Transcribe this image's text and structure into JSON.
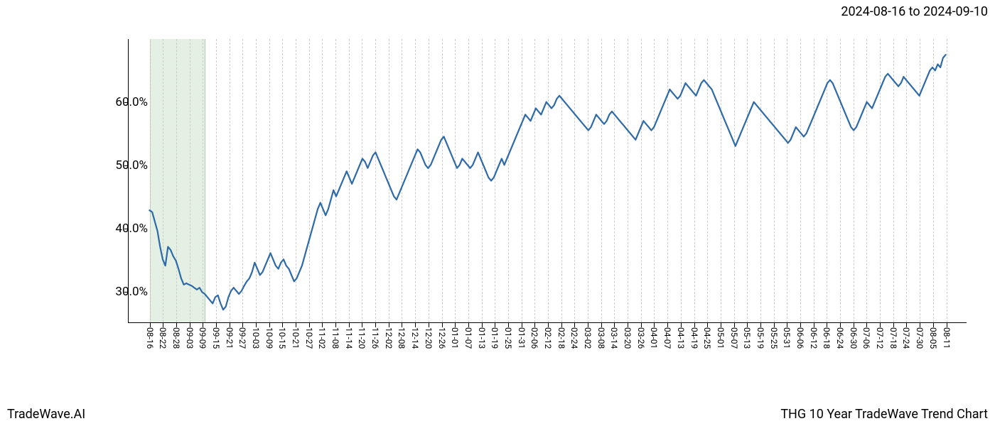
{
  "header": {
    "date_range": "2024-08-16 to 2024-09-10"
  },
  "footer": {
    "brand": "TradeWave.AI",
    "title": "THG 10 Year TradeWave Trend Chart"
  },
  "chart": {
    "type": "line",
    "background_color": "#ffffff",
    "grid_color": "#cccccc",
    "axis_color": "#000000",
    "line_color": "#2f6aa8",
    "line_width": 2.2,
    "highlight_band_color": "rgba(144,195,144,0.25)",
    "title_fontsize": 18,
    "label_fontsize": 12,
    "ytick_fontsize": 17,
    "ylim": [
      25,
      70
    ],
    "ytick_values": [
      30.0,
      40.0,
      50.0,
      60.0
    ],
    "ytick_labels": [
      "30.0%",
      "40.0%",
      "50.0%",
      "60.0%"
    ],
    "x_labels": [
      "08-16",
      "08-22",
      "08-28",
      "09-03",
      "09-09",
      "09-15",
      "09-21",
      "09-27",
      "10-03",
      "10-09",
      "10-15",
      "10-21",
      "10-27",
      "11-02",
      "11-08",
      "11-14",
      "11-20",
      "11-26",
      "12-02",
      "12-08",
      "12-14",
      "12-20",
      "12-26",
      "01-01",
      "01-07",
      "01-13",
      "01-19",
      "01-25",
      "01-31",
      "02-06",
      "02-12",
      "02-18",
      "02-24",
      "03-02",
      "03-08",
      "03-14",
      "03-20",
      "03-26",
      "04-01",
      "04-07",
      "04-13",
      "04-19",
      "04-25",
      "05-01",
      "05-07",
      "05-13",
      "05-19",
      "05-25",
      "05-31",
      "06-06",
      "06-12",
      "06-18",
      "06-24",
      "06-30",
      "07-06",
      "07-12",
      "07-18",
      "07-24",
      "07-30",
      "08-05",
      "08-11"
    ],
    "highlight": {
      "start_idx": 0,
      "end_idx": 4.2
    },
    "series": [
      42.8,
      42.5,
      41.0,
      39.5,
      37.0,
      35.0,
      34.0,
      37.0,
      36.5,
      35.5,
      34.8,
      33.5,
      32.0,
      31.0,
      31.2,
      31.0,
      30.8,
      30.5,
      30.2,
      30.5,
      29.8,
      29.5,
      29.0,
      28.5,
      28.0,
      29.0,
      29.3,
      28.0,
      27.0,
      27.5,
      29.0,
      30.0,
      30.5,
      30.0,
      29.5,
      30.0,
      30.8,
      31.5,
      32.0,
      33.0,
      34.5,
      33.5,
      32.5,
      33.0,
      34.0,
      35.0,
      36.0,
      35.0,
      34.0,
      33.5,
      34.5,
      35.0,
      34.0,
      33.5,
      32.5,
      31.5,
      32.0,
      33.0,
      34.0,
      35.5,
      37.0,
      38.5,
      40.0,
      41.5,
      43.0,
      44.0,
      43.0,
      42.0,
      43.0,
      44.5,
      46.0,
      45.0,
      46.0,
      47.0,
      48.0,
      49.0,
      48.0,
      47.0,
      48.0,
      49.0,
      50.0,
      51.0,
      50.5,
      49.5,
      50.5,
      51.5,
      52.0,
      51.0,
      50.0,
      49.0,
      48.0,
      47.0,
      46.0,
      45.0,
      44.5,
      45.5,
      46.5,
      47.5,
      48.5,
      49.5,
      50.5,
      51.5,
      52.5,
      52.0,
      51.0,
      50.0,
      49.5,
      50.0,
      51.0,
      52.0,
      53.0,
      54.0,
      54.5,
      53.5,
      52.5,
      51.5,
      50.5,
      49.5,
      50.0,
      51.0,
      50.5,
      50.0,
      49.5,
      50.0,
      51.0,
      52.0,
      51.0,
      50.0,
      49.0,
      48.0,
      47.5,
      48.0,
      49.0,
      50.0,
      51.0,
      50.0,
      51.0,
      52.0,
      53.0,
      54.0,
      55.0,
      56.0,
      57.0,
      58.0,
      57.5,
      57.0,
      58.0,
      59.0,
      58.5,
      58.0,
      59.0,
      60.0,
      59.5,
      59.0,
      59.5,
      60.5,
      61.0,
      60.5,
      60.0,
      59.5,
      59.0,
      58.5,
      58.0,
      57.5,
      57.0,
      56.5,
      56.0,
      55.5,
      56.0,
      57.0,
      58.0,
      57.5,
      57.0,
      56.5,
      57.0,
      58.0,
      58.5,
      58.0,
      57.5,
      57.0,
      56.5,
      56.0,
      55.5,
      55.0,
      54.5,
      54.0,
      55.0,
      56.0,
      57.0,
      56.5,
      56.0,
      55.5,
      56.0,
      57.0,
      58.0,
      59.0,
      60.0,
      61.0,
      62.0,
      61.5,
      61.0,
      60.5,
      61.0,
      62.0,
      63.0,
      62.5,
      62.0,
      61.5,
      61.0,
      62.0,
      63.0,
      63.5,
      63.0,
      62.5,
      62.0,
      61.0,
      60.0,
      59.0,
      58.0,
      57.0,
      56.0,
      55.0,
      54.0,
      53.0,
      54.0,
      55.0,
      56.0,
      57.0,
      58.0,
      59.0,
      60.0,
      59.5,
      59.0,
      58.5,
      58.0,
      57.5,
      57.0,
      56.5,
      56.0,
      55.5,
      55.0,
      54.5,
      54.0,
      53.5,
      54.0,
      55.0,
      56.0,
      55.5,
      55.0,
      54.5,
      55.0,
      56.0,
      57.0,
      58.0,
      59.0,
      60.0,
      61.0,
      62.0,
      63.0,
      63.5,
      63.0,
      62.0,
      61.0,
      60.0,
      59.0,
      58.0,
      57.0,
      56.0,
      55.5,
      56.0,
      57.0,
      58.0,
      59.0,
      60.0,
      59.5,
      59.0,
      60.0,
      61.0,
      62.0,
      63.0,
      64.0,
      64.5,
      64.0,
      63.5,
      63.0,
      62.5,
      63.0,
      64.0,
      63.5,
      63.0,
      62.5,
      62.0,
      61.5,
      61.0,
      62.0,
      63.0,
      64.0,
      65.0,
      65.5,
      65.0,
      66.0,
      65.5,
      67.0,
      67.5
    ]
  }
}
